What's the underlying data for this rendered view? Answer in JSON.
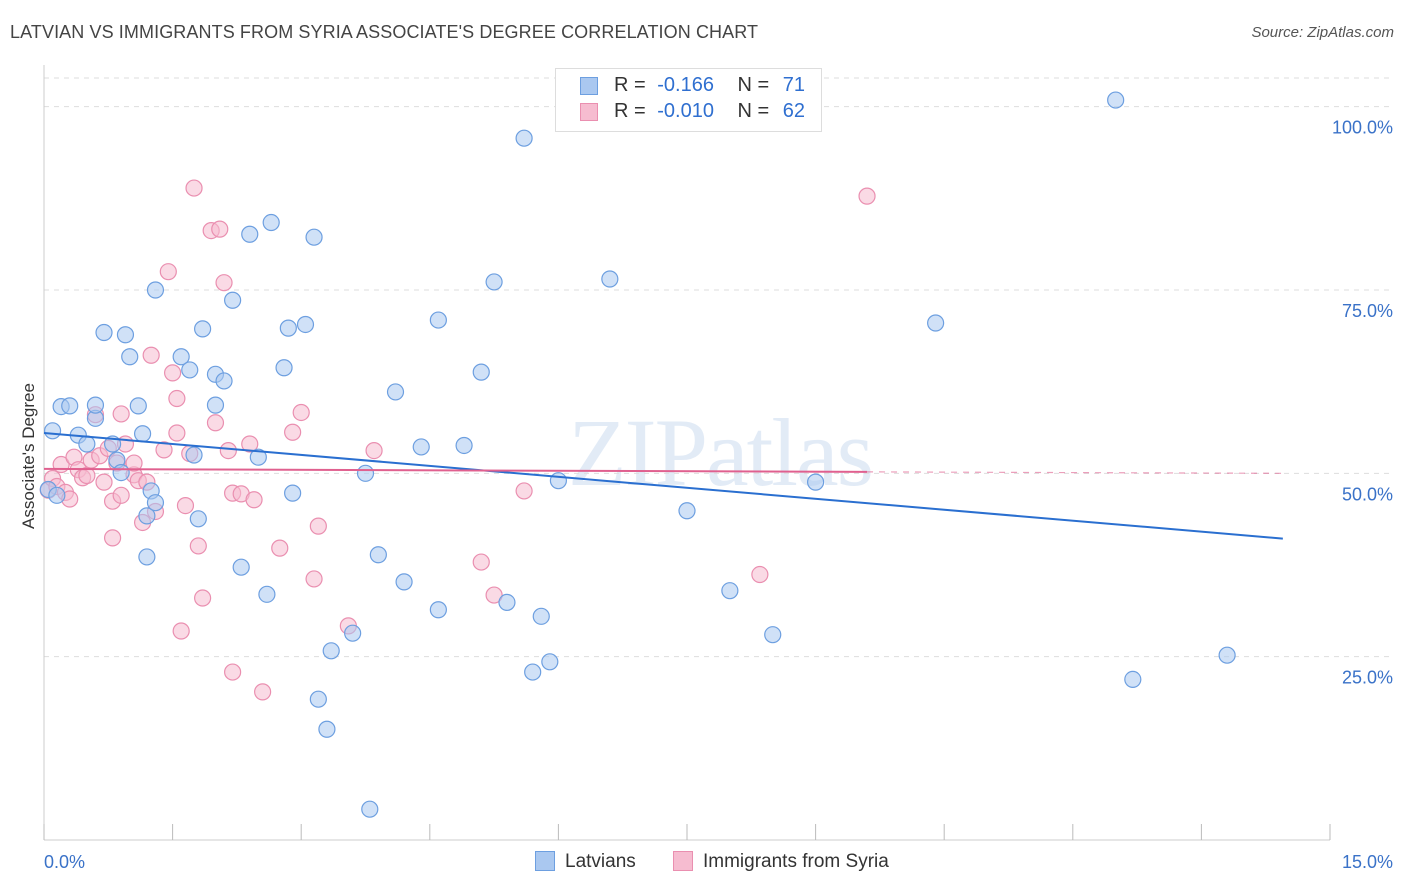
{
  "title": "LATVIAN VS IMMIGRANTS FROM SYRIA ASSOCIATE'S DEGREE CORRELATION CHART",
  "source": "Source: ZipAtlas.com",
  "watermark": "ZIPatlas",
  "legend": {
    "rows": [
      {
        "r_label": "R =",
        "r_value": "-0.166",
        "n_label": "N =",
        "n_value": "71"
      },
      {
        "r_label": "R =",
        "r_value": "-0.010",
        "n_label": "N =",
        "n_value": "62"
      }
    ]
  },
  "bottom_legend": {
    "latvians": "Latvians",
    "syria": "Immigrants from Syria"
  },
  "colors": {
    "latvians_fill": "#aac8f0",
    "latvians_stroke": "#6d9fe0",
    "latvians_line": "#2a6fd0",
    "syria_fill": "#f6bcd0",
    "syria_stroke": "#ea8fb0",
    "syria_line": "#e0608f",
    "axis_text": "#3a72c8",
    "grid": "#dddddd"
  },
  "chart_data": {
    "type": "scatter",
    "title": "LATVIAN VS IMMIGRANTS FROM SYRIA ASSOCIATE'S DEGREE CORRELATION CHART",
    "xlabel": "",
    "ylabel": "Associate's Degree",
    "xlim": [
      0,
      15
    ],
    "ylim": [
      0,
      105
    ],
    "x_tick_labels": [
      "0.0%",
      "15.0%"
    ],
    "y_ticks": [
      25,
      50,
      75,
      100
    ],
    "y_tick_labels": [
      "25.0%",
      "50.0%",
      "75.0%",
      "100.0%"
    ],
    "grid": true,
    "legend_position": "top-center",
    "series": [
      {
        "name": "Latvians",
        "trend": {
          "x0": 0,
          "y0": 55.5,
          "x1": 14.45,
          "y1": 41.1
        },
        "points": [
          [
            0.1,
            55.8
          ],
          [
            0.2,
            59.1
          ],
          [
            0.3,
            59.2
          ],
          [
            0.4,
            55.2
          ],
          [
            0.5,
            54.0
          ],
          [
            0.6,
            57.5
          ],
          [
            0.6,
            59.3
          ],
          [
            0.7,
            69.2
          ],
          [
            0.8,
            54.0
          ],
          [
            0.85,
            51.8
          ],
          [
            0.9,
            50.1
          ],
          [
            0.95,
            68.9
          ],
          [
            1.0,
            65.9
          ],
          [
            1.1,
            59.2
          ],
          [
            1.15,
            55.4
          ],
          [
            1.2,
            44.2
          ],
          [
            1.2,
            38.6
          ],
          [
            1.25,
            47.6
          ],
          [
            1.3,
            46.0
          ],
          [
            1.3,
            75.0
          ],
          [
            1.6,
            65.9
          ],
          [
            1.7,
            64.1
          ],
          [
            1.75,
            52.5
          ],
          [
            1.8,
            43.8
          ],
          [
            1.85,
            69.7
          ],
          [
            2.0,
            63.5
          ],
          [
            2.0,
            59.3
          ],
          [
            2.1,
            62.6
          ],
          [
            2.2,
            73.6
          ],
          [
            2.3,
            37.2
          ],
          [
            2.4,
            82.6
          ],
          [
            2.5,
            52.2
          ],
          [
            2.6,
            33.5
          ],
          [
            2.65,
            84.2
          ],
          [
            2.8,
            64.4
          ],
          [
            2.85,
            69.8
          ],
          [
            2.9,
            47.3
          ],
          [
            3.05,
            70.3
          ],
          [
            3.15,
            82.2
          ],
          [
            3.2,
            19.2
          ],
          [
            3.3,
            15.1
          ],
          [
            3.35,
            25.8
          ],
          [
            3.6,
            28.2
          ],
          [
            3.75,
            50.0
          ],
          [
            3.8,
            4.2
          ],
          [
            3.9,
            38.9
          ],
          [
            4.1,
            61.1
          ],
          [
            4.2,
            35.2
          ],
          [
            4.4,
            53.6
          ],
          [
            4.6,
            31.4
          ],
          [
            4.6,
            70.9
          ],
          [
            4.9,
            53.8
          ],
          [
            5.1,
            63.8
          ],
          [
            5.25,
            76.1
          ],
          [
            5.4,
            32.4
          ],
          [
            5.6,
            95.7
          ],
          [
            5.7,
            22.9
          ],
          [
            5.8,
            30.5
          ],
          [
            5.9,
            24.3
          ],
          [
            6.0,
            49.0
          ],
          [
            6.6,
            76.5
          ],
          [
            7.5,
            44.9
          ],
          [
            8.0,
            34.0
          ],
          [
            8.5,
            28.0
          ],
          [
            9.0,
            48.8
          ],
          [
            10.4,
            70.5
          ],
          [
            12.5,
            100.9
          ],
          [
            12.7,
            21.9
          ],
          [
            13.8,
            25.2
          ],
          [
            0.05,
            47.8
          ],
          [
            0.15,
            47.0
          ]
        ]
      },
      {
        "name": "Immigrants from Syria",
        "trend": {
          "x0": 0,
          "y0": 50.6,
          "x1": 9.6,
          "y1": 50.2
        },
        "trend_dashed": {
          "x0": 9.6,
          "y0": 50.2,
          "x1": 14.45,
          "y1": 50.0
        },
        "points": [
          [
            0.05,
            47.7
          ],
          [
            0.1,
            49.3
          ],
          [
            0.15,
            48.2
          ],
          [
            0.2,
            51.2
          ],
          [
            0.25,
            47.4
          ],
          [
            0.3,
            46.5
          ],
          [
            0.35,
            52.2
          ],
          [
            0.4,
            50.5
          ],
          [
            0.45,
            49.4
          ],
          [
            0.5,
            49.7
          ],
          [
            0.55,
            51.8
          ],
          [
            0.6,
            58.0
          ],
          [
            0.65,
            52.4
          ],
          [
            0.7,
            48.8
          ],
          [
            0.75,
            53.4
          ],
          [
            0.8,
            46.2
          ],
          [
            0.85,
            51.4
          ],
          [
            0.8,
            41.2
          ],
          [
            0.9,
            47.0
          ],
          [
            0.9,
            58.1
          ],
          [
            0.95,
            54.0
          ],
          [
            1.05,
            49.8
          ],
          [
            1.05,
            51.4
          ],
          [
            1.1,
            49.0
          ],
          [
            1.15,
            43.3
          ],
          [
            1.2,
            48.8
          ],
          [
            1.25,
            66.1
          ],
          [
            1.3,
            44.8
          ],
          [
            1.4,
            53.2
          ],
          [
            1.45,
            77.5
          ],
          [
            1.5,
            63.7
          ],
          [
            1.55,
            60.2
          ],
          [
            1.55,
            55.5
          ],
          [
            1.6,
            28.5
          ],
          [
            1.65,
            45.6
          ],
          [
            1.75,
            88.9
          ],
          [
            1.7,
            52.7
          ],
          [
            1.8,
            40.1
          ],
          [
            1.85,
            33.0
          ],
          [
            1.95,
            83.1
          ],
          [
            2.0,
            56.9
          ],
          [
            2.05,
            83.3
          ],
          [
            2.1,
            76.0
          ],
          [
            2.15,
            53.1
          ],
          [
            2.2,
            47.3
          ],
          [
            2.2,
            22.9
          ],
          [
            2.3,
            47.2
          ],
          [
            2.4,
            54.0
          ],
          [
            2.45,
            46.4
          ],
          [
            2.55,
            20.2
          ],
          [
            2.75,
            39.8
          ],
          [
            2.9,
            55.6
          ],
          [
            3.0,
            58.3
          ],
          [
            3.15,
            35.6
          ],
          [
            3.2,
            42.8
          ],
          [
            3.55,
            29.2
          ],
          [
            3.85,
            53.1
          ],
          [
            5.1,
            37.9
          ],
          [
            5.25,
            33.4
          ],
          [
            5.6,
            47.6
          ],
          [
            8.35,
            36.2
          ],
          [
            9.6,
            87.8
          ]
        ]
      }
    ]
  }
}
